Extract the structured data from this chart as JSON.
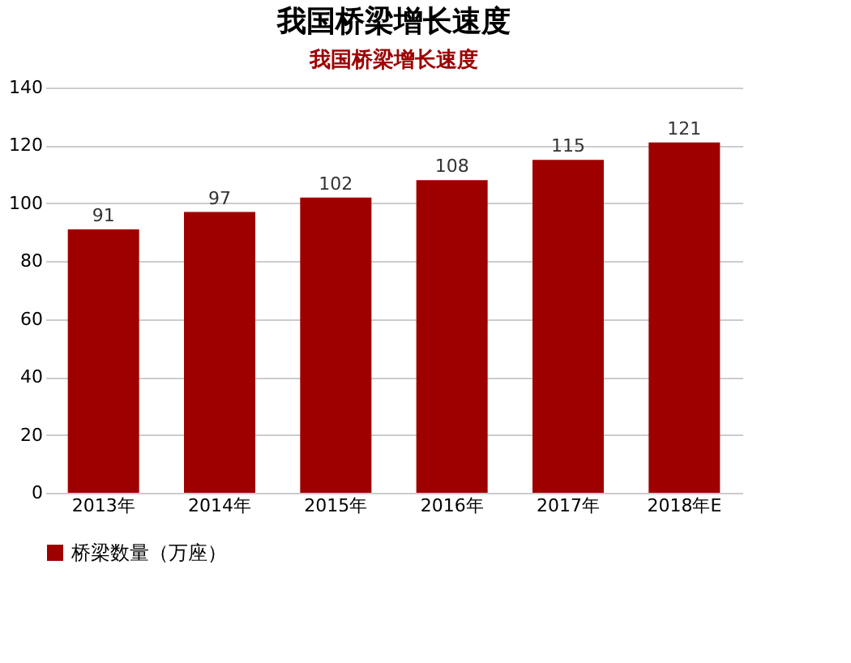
{
  "chart_data": {
    "type": "bar",
    "title": "我国桥梁增长速度",
    "subtitle": "我国桥梁增长速度",
    "categories": [
      "2013年",
      "2014年",
      "2015年",
      "2016年",
      "2017年",
      "2018年E"
    ],
    "series": [
      {
        "name": "桥梁数量（万座）",
        "color": "#9e0000",
        "values": [
          91,
          97,
          102,
          108,
          115,
          121
        ]
      }
    ],
    "ylim": [
      0,
      140
    ],
    "yticks": [
      0,
      20,
      40,
      60,
      80,
      100,
      120,
      140
    ],
    "grid": "y",
    "legend": "bottom",
    "data_labels": true
  }
}
